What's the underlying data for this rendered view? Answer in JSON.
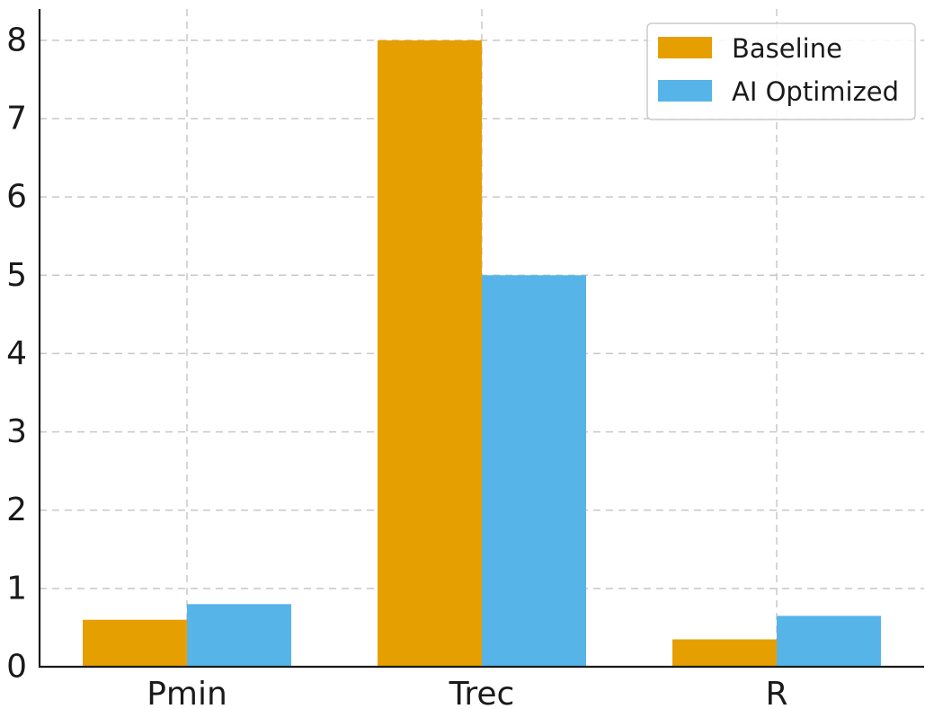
{
  "chart_data": {
    "type": "bar",
    "categories": [
      "Pmin",
      "Trec",
      "R"
    ],
    "series": [
      {
        "name": "Baseline",
        "values": [
          0.6,
          8.0,
          0.35
        ],
        "color": "#E69F00"
      },
      {
        "name": "AI Optimized",
        "values": [
          0.8,
          5.0,
          0.65
        ],
        "color": "#56B4E9"
      }
    ],
    "ylim": [
      0,
      8.4
    ],
    "yticks": [
      "0",
      "1",
      "2",
      "3",
      "4",
      "5",
      "6",
      "7",
      "8"
    ],
    "title": "",
    "xlabel": "",
    "ylabel": "",
    "grid": true,
    "legend_position": "top-right"
  }
}
